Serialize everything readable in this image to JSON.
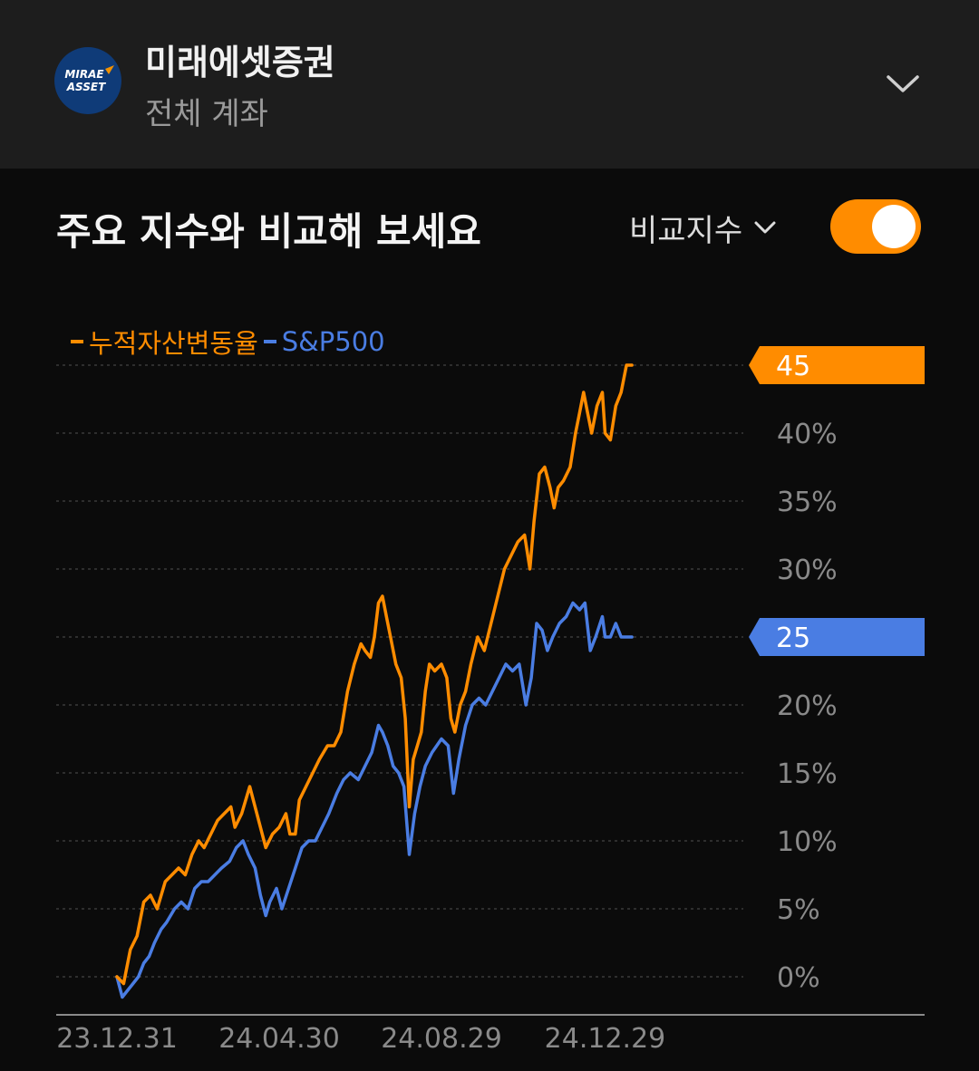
{
  "header": {
    "logo_text_line1": "MIRAE",
    "logo_text_line2": "ASSET",
    "broker_name": "미래에셋증권",
    "account_name": "전체 계좌"
  },
  "section": {
    "title": "주요 지수와 비교해 보세요",
    "compare_label": "비교지수",
    "toggle_on": true
  },
  "colors": {
    "portfolio": "#ff8c00",
    "index": "#4a7de3"
  },
  "chart_data": {
    "type": "line",
    "xlabel": "",
    "ylabel": "",
    "ylim": [
      -1,
      45
    ],
    "yticks": [
      0,
      5,
      10,
      15,
      20,
      25,
      30,
      35,
      40
    ],
    "ytick_labels": [
      "0%",
      "5%",
      "10%",
      "15%",
      "20%",
      "25%",
      "30%",
      "35%",
      "40%"
    ],
    "x_range": [
      "2023-12-31",
      "2025-03-10"
    ],
    "xticks": [
      "2023-12-31",
      "2024-04-30",
      "2024-08-29",
      "2024-12-29"
    ],
    "xtick_labels": [
      "23.12.31",
      "24.04.30",
      "24.08.29",
      "24.12.29"
    ],
    "grid": true,
    "legend": "top-left",
    "series": [
      {
        "name": "누적자산변동율",
        "end_label": "45",
        "points": [
          [
            "2023-12-31",
            0
          ],
          [
            "2024-01-05",
            -0.5
          ],
          [
            "2024-01-10",
            2
          ],
          [
            "2024-01-15",
            3
          ],
          [
            "2024-01-20",
            5.5
          ],
          [
            "2024-01-25",
            6
          ],
          [
            "2024-01-30",
            5
          ],
          [
            "2024-02-05",
            7
          ],
          [
            "2024-02-10",
            7.5
          ],
          [
            "2024-02-15",
            8
          ],
          [
            "2024-02-20",
            7.5
          ],
          [
            "2024-02-25",
            9
          ],
          [
            "2024-03-01",
            10
          ],
          [
            "2024-03-05",
            9.5
          ],
          [
            "2024-03-10",
            10.5
          ],
          [
            "2024-03-15",
            11.5
          ],
          [
            "2024-03-20",
            12
          ],
          [
            "2024-03-25",
            12.5
          ],
          [
            "2024-03-28",
            11
          ],
          [
            "2024-04-02",
            12
          ],
          [
            "2024-04-08",
            14
          ],
          [
            "2024-04-12",
            12.5
          ],
          [
            "2024-04-16",
            11
          ],
          [
            "2024-04-20",
            9.5
          ],
          [
            "2024-04-25",
            10.5
          ],
          [
            "2024-04-30",
            11
          ],
          [
            "2024-05-05",
            12
          ],
          [
            "2024-05-08",
            10.5
          ],
          [
            "2024-05-12",
            10.5
          ],
          [
            "2024-05-15",
            13
          ],
          [
            "2024-05-20",
            14
          ],
          [
            "2024-05-25",
            15
          ],
          [
            "2024-05-30",
            16
          ],
          [
            "2024-06-05",
            17
          ],
          [
            "2024-06-10",
            17
          ],
          [
            "2024-06-15",
            18
          ],
          [
            "2024-06-20",
            21
          ],
          [
            "2024-06-25",
            23
          ],
          [
            "2024-06-30",
            24.5
          ],
          [
            "2024-07-03",
            24
          ],
          [
            "2024-07-07",
            23.5
          ],
          [
            "2024-07-10",
            25
          ],
          [
            "2024-07-13",
            27.5
          ],
          [
            "2024-07-16",
            28
          ],
          [
            "2024-07-19",
            26.5
          ],
          [
            "2024-07-22",
            25
          ],
          [
            "2024-07-26",
            23
          ],
          [
            "2024-07-30",
            22
          ],
          [
            "2024-08-02",
            19
          ],
          [
            "2024-08-05",
            12.5
          ],
          [
            "2024-08-08",
            16
          ],
          [
            "2024-08-11",
            17
          ],
          [
            "2024-08-14",
            18
          ],
          [
            "2024-08-17",
            21
          ],
          [
            "2024-08-20",
            23
          ],
          [
            "2024-08-24",
            22.5
          ],
          [
            "2024-08-29",
            23
          ],
          [
            "2024-09-02",
            22
          ],
          [
            "2024-09-05",
            19
          ],
          [
            "2024-09-08",
            18
          ],
          [
            "2024-09-12",
            20
          ],
          [
            "2024-09-16",
            21
          ],
          [
            "2024-09-20",
            23
          ],
          [
            "2024-09-25",
            25
          ],
          [
            "2024-09-30",
            24
          ],
          [
            "2024-10-05",
            26
          ],
          [
            "2024-10-10",
            28
          ],
          [
            "2024-10-15",
            30
          ],
          [
            "2024-10-20",
            31
          ],
          [
            "2024-10-25",
            32
          ],
          [
            "2024-10-30",
            32.5
          ],
          [
            "2024-11-03",
            30
          ],
          [
            "2024-11-06",
            33.5
          ],
          [
            "2024-11-10",
            37
          ],
          [
            "2024-11-14",
            37.5
          ],
          [
            "2024-11-18",
            36
          ],
          [
            "2024-11-21",
            34.5
          ],
          [
            "2024-11-24",
            36
          ],
          [
            "2024-11-28",
            36.5
          ],
          [
            "2024-12-03",
            37.5
          ],
          [
            "2024-12-07",
            40
          ],
          [
            "2024-12-10",
            41.5
          ],
          [
            "2024-12-13",
            43
          ],
          [
            "2024-12-16",
            41.5
          ],
          [
            "2024-12-19",
            40
          ],
          [
            "2024-12-23",
            42
          ],
          [
            "2024-12-27",
            43
          ],
          [
            "2024-12-29",
            40
          ],
          [
            "2025-01-02",
            39.5
          ],
          [
            "2025-01-06",
            42
          ],
          [
            "2025-01-10",
            43
          ],
          [
            "2025-01-14",
            45
          ],
          [
            "2025-01-18",
            45
          ]
        ]
      },
      {
        "name": "S&P500",
        "end_label": "25",
        "points": [
          [
            "2023-12-31",
            0
          ],
          [
            "2024-01-04",
            -1.5
          ],
          [
            "2024-01-08",
            -1
          ],
          [
            "2024-01-12",
            -0.5
          ],
          [
            "2024-01-16",
            0
          ],
          [
            "2024-01-20",
            1
          ],
          [
            "2024-01-24",
            1.5
          ],
          [
            "2024-01-28",
            2.5
          ],
          [
            "2024-02-02",
            3.5
          ],
          [
            "2024-02-06",
            4
          ],
          [
            "2024-02-12",
            5
          ],
          [
            "2024-02-17",
            5.5
          ],
          [
            "2024-02-22",
            5
          ],
          [
            "2024-02-27",
            6.5
          ],
          [
            "2024-03-03",
            7
          ],
          [
            "2024-03-08",
            7
          ],
          [
            "2024-03-13",
            7.5
          ],
          [
            "2024-03-18",
            8
          ],
          [
            "2024-03-24",
            8.5
          ],
          [
            "2024-03-29",
            9.5
          ],
          [
            "2024-04-03",
            10
          ],
          [
            "2024-04-07",
            9
          ],
          [
            "2024-04-12",
            8
          ],
          [
            "2024-04-16",
            6
          ],
          [
            "2024-04-20",
            4.5
          ],
          [
            "2024-04-23",
            5.5
          ],
          [
            "2024-04-28",
            6.5
          ],
          [
            "2024-05-02",
            5
          ],
          [
            "2024-05-07",
            6.5
          ],
          [
            "2024-05-12",
            8
          ],
          [
            "2024-05-17",
            9.5
          ],
          [
            "2024-05-22",
            10
          ],
          [
            "2024-05-27",
            10
          ],
          [
            "2024-06-01",
            11
          ],
          [
            "2024-06-06",
            12
          ],
          [
            "2024-06-12",
            13.5
          ],
          [
            "2024-06-17",
            14.5
          ],
          [
            "2024-06-22",
            15
          ],
          [
            "2024-06-28",
            14.5
          ],
          [
            "2024-07-03",
            15.5
          ],
          [
            "2024-07-08",
            16.5
          ],
          [
            "2024-07-13",
            18.5
          ],
          [
            "2024-07-16",
            18
          ],
          [
            "2024-07-20",
            17
          ],
          [
            "2024-07-24",
            15.5
          ],
          [
            "2024-07-28",
            15
          ],
          [
            "2024-08-01",
            14
          ],
          [
            "2024-08-05",
            9
          ],
          [
            "2024-08-09",
            12
          ],
          [
            "2024-08-13",
            14
          ],
          [
            "2024-08-17",
            15.5
          ],
          [
            "2024-08-22",
            16.5
          ],
          [
            "2024-08-29",
            17.5
          ],
          [
            "2024-09-03",
            17
          ],
          [
            "2024-09-07",
            13.5
          ],
          [
            "2024-09-11",
            16
          ],
          [
            "2024-09-16",
            18.5
          ],
          [
            "2024-09-21",
            20
          ],
          [
            "2024-09-26",
            20.5
          ],
          [
            "2024-10-01",
            20
          ],
          [
            "2024-10-06",
            21
          ],
          [
            "2024-10-11",
            22
          ],
          [
            "2024-10-16",
            23
          ],
          [
            "2024-10-21",
            22.5
          ],
          [
            "2024-10-26",
            23
          ],
          [
            "2024-10-31",
            20
          ],
          [
            "2024-11-04",
            22
          ],
          [
            "2024-11-08",
            26
          ],
          [
            "2024-11-12",
            25.5
          ],
          [
            "2024-11-16",
            24
          ],
          [
            "2024-11-20",
            25
          ],
          [
            "2024-11-25",
            26
          ],
          [
            "2024-11-30",
            26.5
          ],
          [
            "2024-12-05",
            27.5
          ],
          [
            "2024-12-10",
            27
          ],
          [
            "2024-12-14",
            27.5
          ],
          [
            "2024-12-18",
            24
          ],
          [
            "2024-12-22",
            25
          ],
          [
            "2024-12-27",
            26.5
          ],
          [
            "2024-12-29",
            25
          ],
          [
            "2025-01-02",
            25
          ],
          [
            "2025-01-06",
            26
          ],
          [
            "2025-01-10",
            25
          ],
          [
            "2025-01-14",
            25
          ],
          [
            "2025-01-18",
            25
          ]
        ]
      }
    ]
  }
}
